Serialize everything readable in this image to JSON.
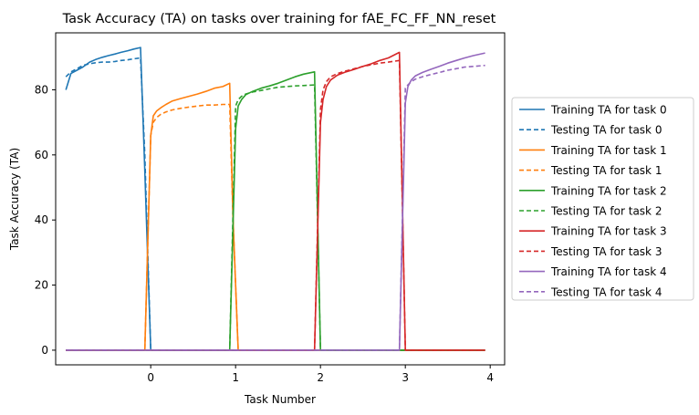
{
  "chart_data": {
    "type": "line",
    "title": "Task Accuracy (TA) on tasks over training for fAE_FC_FF_NN_reset",
    "xlabel": "Task Number",
    "ylabel": "Task Accuracy (TA)",
    "xlim": [
      -1.12,
      4.17
    ],
    "ylim": [
      -4.5,
      97.5
    ],
    "xticks": [
      0,
      1,
      2,
      3,
      4
    ],
    "xtick_labels": [
      "0",
      "1",
      "2",
      "3",
      "4"
    ],
    "yticks": [
      0,
      20,
      40,
      60,
      80
    ],
    "ytick_labels": [
      "0",
      "20",
      "40",
      "60",
      "80"
    ],
    "grid": false,
    "legend_position": "center-right-outside",
    "series": [
      {
        "name": "Training TA for task 0",
        "color": "#1f77b4",
        "dash": "solid",
        "x": [
          -1.0,
          -0.94,
          -0.87,
          -0.8,
          -0.72,
          -0.65,
          -0.57,
          -0.5,
          -0.42,
          -0.35,
          -0.27,
          -0.2,
          -0.12,
          -0.07,
          0.0,
          0.07,
          0.2,
          0.4,
          0.6,
          0.8,
          1.0,
          1.4,
          1.8,
          2.2,
          2.6,
          3.0,
          3.4,
          3.94
        ],
        "y": [
          80,
          85,
          86,
          87,
          88.5,
          89.3,
          90,
          90.5,
          91,
          91.5,
          92,
          92.5,
          93,
          55,
          0,
          0,
          0,
          0,
          0,
          0,
          0,
          0,
          0,
          0,
          0,
          0,
          0,
          0
        ]
      },
      {
        "name": "Testing TA for task 0",
        "color": "#1f77b4",
        "dash": "dashed",
        "x": [
          -1.0,
          -0.94,
          -0.87,
          -0.8,
          -0.72,
          -0.65,
          -0.57,
          -0.5,
          -0.42,
          -0.35,
          -0.27,
          -0.2,
          -0.12,
          -0.07,
          0.0,
          0.07,
          0.2,
          0.4,
          0.6,
          0.8,
          1.0,
          1.4,
          1.8,
          2.2,
          2.6,
          3.0,
          3.4,
          3.94
        ],
        "y": [
          84,
          85.5,
          86.5,
          87.5,
          88,
          88.3,
          88.5,
          88.5,
          88.7,
          89,
          89.2,
          89.5,
          89.8,
          60,
          0,
          0,
          0,
          0,
          0,
          0,
          0,
          0,
          0,
          0,
          0,
          0,
          0,
          0
        ]
      },
      {
        "name": "Training TA for task 1",
        "color": "#ff7f0e",
        "dash": "solid",
        "x": [
          -1.0,
          -0.5,
          -0.07,
          0.0,
          0.03,
          0.07,
          0.12,
          0.18,
          0.25,
          0.35,
          0.45,
          0.55,
          0.65,
          0.75,
          0.85,
          0.93,
          0.97,
          1.03,
          1.2,
          1.6,
          2.0,
          2.5,
          3.0,
          3.5,
          3.94
        ],
        "y": [
          0,
          0,
          0,
          66,
          72,
          73.5,
          74.5,
          75.5,
          76.5,
          77.3,
          78,
          78.7,
          79.5,
          80.5,
          81,
          82,
          40,
          0,
          0,
          0,
          0,
          0,
          0,
          0,
          0
        ]
      },
      {
        "name": "Testing TA for task 1",
        "color": "#ff7f0e",
        "dash": "dashed",
        "x": [
          -1.0,
          -0.5,
          -0.07,
          0.0,
          0.03,
          0.07,
          0.12,
          0.18,
          0.25,
          0.35,
          0.45,
          0.55,
          0.65,
          0.75,
          0.85,
          0.93,
          0.97,
          1.03,
          1.2,
          1.6,
          2.0,
          2.5,
          3.0,
          3.5,
          3.94
        ],
        "y": [
          0,
          0,
          0,
          66,
          70,
          71.5,
          72.5,
          73.2,
          73.8,
          74.3,
          74.7,
          75,
          75.3,
          75.3,
          75.5,
          75.5,
          40,
          0,
          0,
          0,
          0,
          0,
          0,
          0,
          0
        ]
      },
      {
        "name": "Training TA for task 2",
        "color": "#2ca02c",
        "dash": "solid",
        "x": [
          -1.0,
          -0.5,
          0.0,
          0.5,
          0.93,
          1.0,
          1.03,
          1.07,
          1.12,
          1.2,
          1.3,
          1.4,
          1.5,
          1.6,
          1.7,
          1.8,
          1.93,
          2.0,
          2.2,
          2.6,
          3.0,
          3.5,
          3.94
        ],
        "y": [
          0,
          0,
          0,
          0,
          0,
          68,
          75,
          77,
          78.5,
          79.5,
          80.5,
          81.2,
          82,
          83,
          84,
          84.8,
          85.5,
          0,
          0,
          0,
          0,
          0,
          0
        ]
      },
      {
        "name": "Testing TA for task 2",
        "color": "#2ca02c",
        "dash": "dashed",
        "x": [
          -1.0,
          -0.5,
          0.0,
          0.5,
          0.93,
          1.0,
          1.03,
          1.07,
          1.12,
          1.2,
          1.3,
          1.4,
          1.5,
          1.6,
          1.7,
          1.8,
          1.93,
          2.0,
          2.2,
          2.6,
          3.0,
          3.5,
          3.94
        ],
        "y": [
          0,
          0,
          0,
          0,
          0,
          75,
          77,
          78,
          78.7,
          79.3,
          79.8,
          80.3,
          80.8,
          81,
          81.2,
          81.3,
          81.5,
          0,
          0,
          0,
          0,
          0,
          0
        ]
      },
      {
        "name": "Training TA for task 3",
        "color": "#d62728",
        "dash": "solid",
        "x": [
          -1.0,
          -0.5,
          0.0,
          0.5,
          1.0,
          1.5,
          1.93,
          2.0,
          2.03,
          2.07,
          2.12,
          2.2,
          2.3,
          2.4,
          2.5,
          2.6,
          2.7,
          2.8,
          2.93,
          3.0,
          3.3,
          3.6,
          3.94
        ],
        "y": [
          0,
          0,
          0,
          0,
          0,
          0,
          0,
          70,
          77,
          81,
          83,
          84.5,
          85.5,
          86.3,
          87.2,
          88,
          89,
          89.8,
          91.5,
          0,
          0,
          0,
          0
        ]
      },
      {
        "name": "Testing TA for task 3",
        "color": "#d62728",
        "dash": "dashed",
        "x": [
          -1.0,
          -0.5,
          0.0,
          0.5,
          1.0,
          1.5,
          1.93,
          2.0,
          2.03,
          2.07,
          2.12,
          2.2,
          2.3,
          2.4,
          2.5,
          2.6,
          2.7,
          2.8,
          2.93,
          3.0,
          3.3,
          3.6,
          3.94
        ],
        "y": [
          0,
          0,
          0,
          0,
          0,
          0,
          0,
          74,
          80,
          82.5,
          84,
          85,
          85.8,
          86.5,
          87.2,
          87.7,
          88.2,
          88.5,
          89,
          0,
          0,
          0,
          0
        ]
      },
      {
        "name": "Training TA for task 4",
        "color": "#9467bd",
        "dash": "solid",
        "x": [
          -1.0,
          -0.5,
          0.0,
          0.5,
          1.0,
          1.5,
          2.0,
          2.5,
          2.93,
          3.0,
          3.03,
          3.07,
          3.12,
          3.2,
          3.3,
          3.4,
          3.5,
          3.6,
          3.7,
          3.8,
          3.94
        ],
        "y": [
          0,
          0,
          0,
          0,
          0,
          0,
          0,
          0,
          0,
          76,
          81,
          83,
          84.3,
          85.3,
          86.3,
          87.2,
          88.2,
          89,
          89.8,
          90.5,
          91.3
        ]
      },
      {
        "name": "Testing TA for task 4",
        "color": "#9467bd",
        "dash": "dashed",
        "x": [
          -1.0,
          -0.5,
          0.0,
          0.5,
          1.0,
          1.5,
          2.0,
          2.5,
          2.93,
          3.0,
          3.03,
          3.07,
          3.12,
          3.2,
          3.3,
          3.4,
          3.5,
          3.6,
          3.7,
          3.8,
          3.94
        ],
        "y": [
          0,
          0,
          0,
          0,
          0,
          0,
          0,
          0,
          0,
          80.5,
          81.5,
          82.5,
          83.3,
          84,
          84.7,
          85.3,
          86,
          86.5,
          87,
          87.2,
          87.5
        ]
      }
    ]
  }
}
